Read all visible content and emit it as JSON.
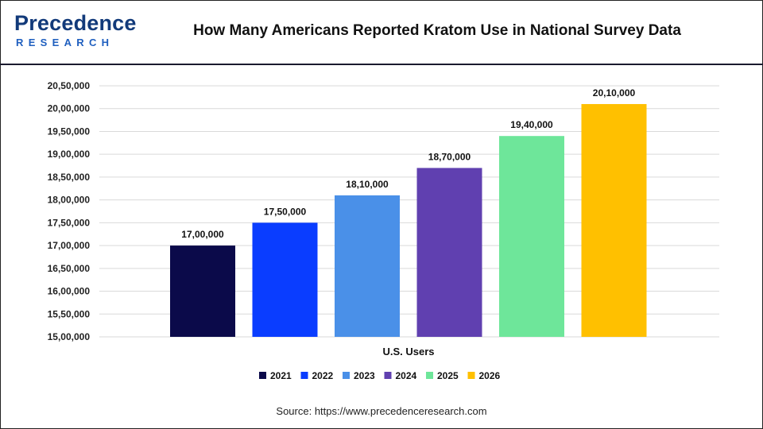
{
  "header": {
    "logo_main": "Precedence",
    "logo_sub": "RESEARCH",
    "title": "How Many Americans Reported Kratom Use in National Survey Data"
  },
  "footer": {
    "source": "Source: https://www.precedenceresearch.com"
  },
  "chart_data": {
    "type": "bar",
    "title": "How Many Americans Reported Kratom Use in National Survey Data",
    "xlabel": "U.S. Users",
    "ylabel": "",
    "ylim": [
      1500000,
      2050000
    ],
    "ytick_step": 50000,
    "ytick_labels": [
      "15,00,000",
      "15,50,000",
      "16,00,000",
      "16,50,000",
      "17,00,000",
      "17,50,000",
      "18,00,000",
      "18,50,000",
      "19,00,000",
      "19,50,000",
      "20,00,000",
      "20,50,000"
    ],
    "grid": true,
    "legend_position": "bottom",
    "series": [
      {
        "name": "2021",
        "value": 1700000,
        "label": "17,00,000",
        "color": "#0b0a4a"
      },
      {
        "name": "2022",
        "value": 1750000,
        "label": "17,50,000",
        "color": "#0a3dff"
      },
      {
        "name": "2023",
        "value": 1810000,
        "label": "18,10,000",
        "color": "#4a90e8"
      },
      {
        "name": "2024",
        "value": 1870000,
        "label": "18,70,000",
        "color": "#6040b0"
      },
      {
        "name": "2025",
        "value": 1940000,
        "label": "19,40,000",
        "color": "#6ee69a"
      },
      {
        "name": "2026",
        "value": 2010000,
        "label": "20,10,000",
        "color": "#ffc000"
      }
    ]
  }
}
